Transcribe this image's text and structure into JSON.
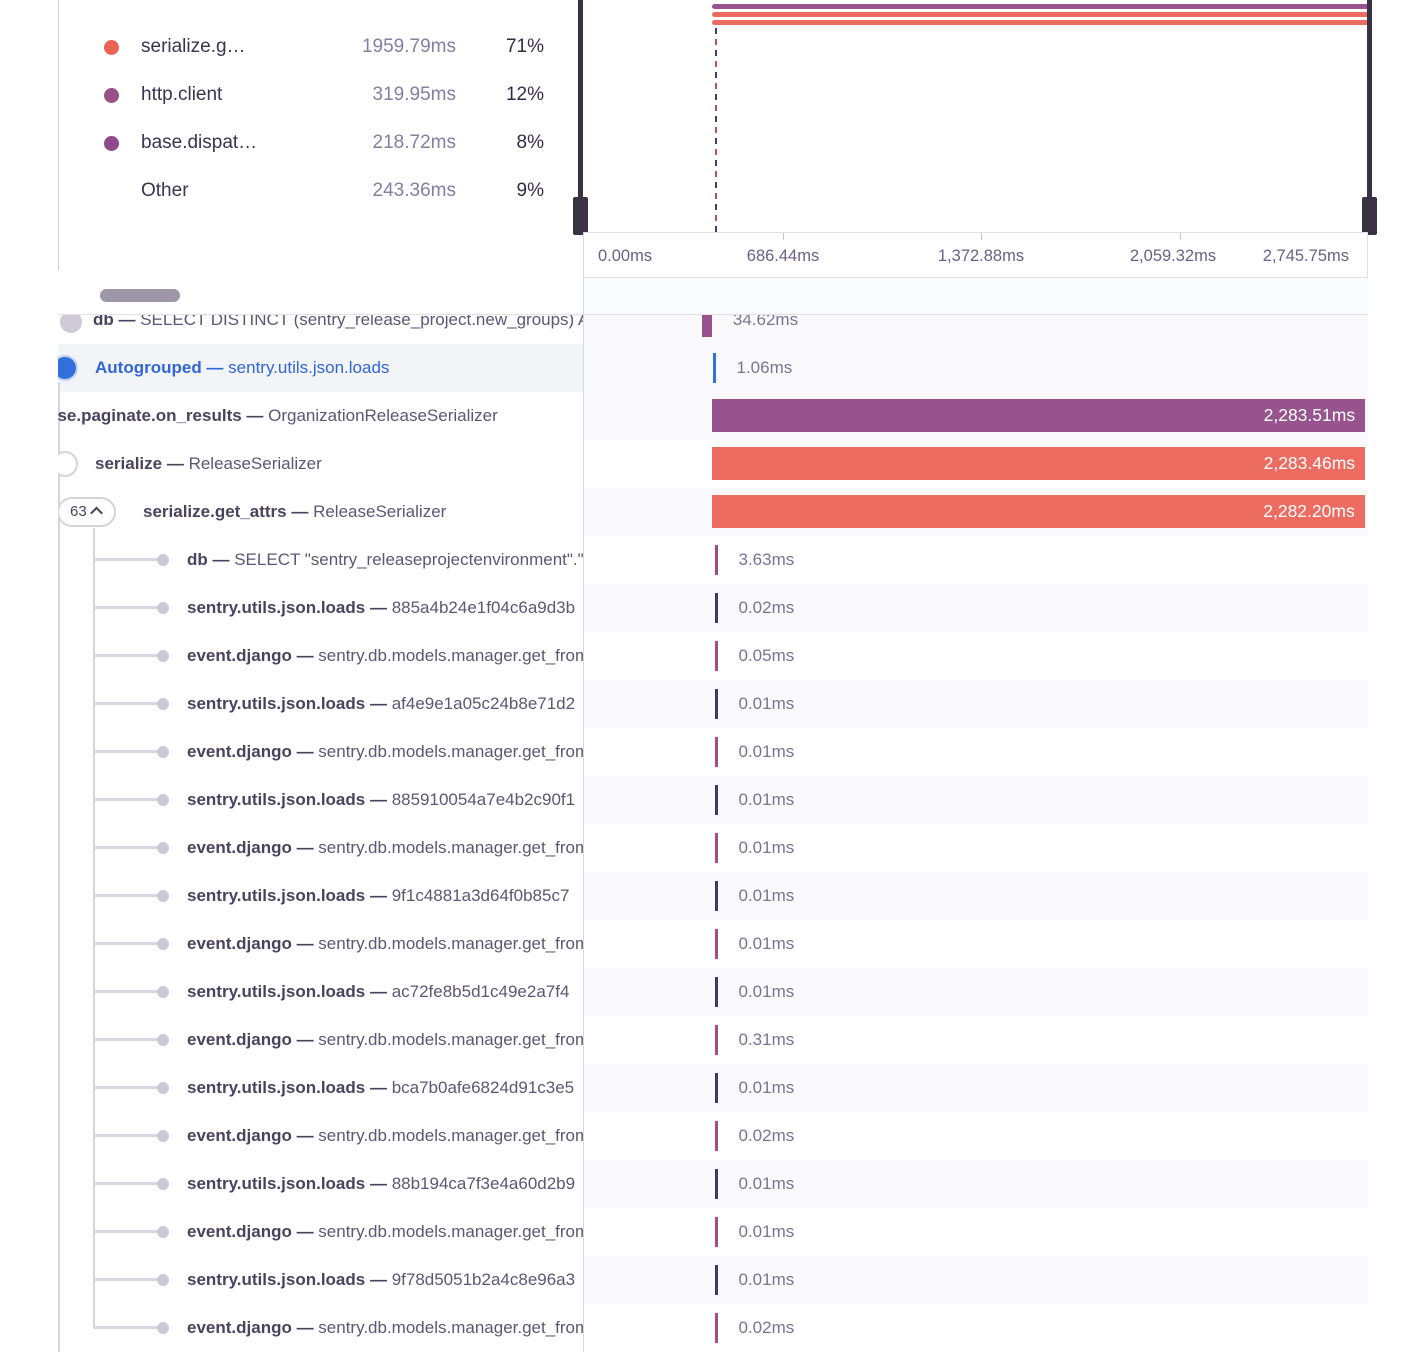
{
  "colors": {
    "purple": "#96538e",
    "red": "#ed6c62",
    "blue": "#3273dc",
    "db_pink": "#9d4d84",
    "json_navy": "#3b3d66",
    "django_magenta": "#a74b82",
    "legend_red_dot": "#ed6355",
    "legend_purple_dot1": "#9c5089",
    "legend_purple_dot2": "#8e4a8c"
  },
  "legend": {
    "items": [
      {
        "name": "serialize.g…",
        "duration": "1959.79ms",
        "pct": "71%",
        "dot": "legend_red_dot"
      },
      {
        "name": "http.client",
        "duration": "319.95ms",
        "pct": "12%",
        "dot": "legend_purple_dot1"
      },
      {
        "name": "base.dispat…",
        "duration": "218.72ms",
        "pct": "8%",
        "dot": "legend_purple_dot2"
      },
      {
        "name": "Other",
        "duration": "243.36ms",
        "pct": "9%",
        "dot": null
      }
    ]
  },
  "minimap": {
    "stripes": [
      "purple",
      "red",
      "red"
    ]
  },
  "axis": {
    "labels": [
      "0.00ms",
      "686.44ms",
      "1,372.88ms",
      "2,059.32ms",
      "2,745.75ms"
    ]
  },
  "tree": {
    "expand_badge": "63",
    "rows": [
      {
        "op": "db",
        "desc": "SELECT DISTINCT (sentry_release_project.new_groups) AS",
        "duration": "34.62ms",
        "kind": "db-big",
        "left": "stub"
      },
      {
        "op": "Autogrouped",
        "desc": "sentry.utils.json.loads",
        "duration": "1.06ms",
        "kind": "autogroup",
        "left": "autogroup"
      },
      {
        "op": "ase.paginate.on_results",
        "desc": "OrganizationReleaseSerializer",
        "duration": "2,283.51ms",
        "kind": "paginate",
        "left": "shifted"
      },
      {
        "op": "serialize",
        "desc": "ReleaseSerializer",
        "duration": "2,283.46ms",
        "kind": "serialize",
        "left": "halfbadge"
      },
      {
        "op": "serialize.get_attrs",
        "desc": "ReleaseSerializer",
        "duration": "2,282.20ms",
        "kind": "get_attrs",
        "left": "badge"
      },
      {
        "op": "db",
        "desc": "SELECT \"sentry_releaseprojectenvironment\".\"id\", \"sen",
        "duration": "3.63ms",
        "kind": "db",
        "left": "child"
      },
      {
        "op": "sentry.utils.json.loads",
        "desc": "885a4b24e1f04c6a9d3b",
        "duration": "0.02ms",
        "kind": "json",
        "left": "child"
      },
      {
        "op": "event.django",
        "desc": "sentry.db.models.manager.get_from_cache",
        "duration": "0.05ms",
        "kind": "django",
        "left": "child"
      },
      {
        "op": "sentry.utils.json.loads",
        "desc": "af4e9e1a05c24b8e71d2",
        "duration": "0.01ms",
        "kind": "json",
        "left": "child"
      },
      {
        "op": "event.django",
        "desc": "sentry.db.models.manager.get_from_cache",
        "duration": "0.01ms",
        "kind": "django",
        "left": "child"
      },
      {
        "op": "sentry.utils.json.loads",
        "desc": "885910054a7e4b2c90f1",
        "duration": "0.01ms",
        "kind": "json",
        "left": "child"
      },
      {
        "op": "event.django",
        "desc": "sentry.db.models.manager.get_from_cache",
        "duration": "0.01ms",
        "kind": "django",
        "left": "child"
      },
      {
        "op": "sentry.utils.json.loads",
        "desc": "9f1c4881a3d64f0b85c7",
        "duration": "0.01ms",
        "kind": "json",
        "left": "child"
      },
      {
        "op": "event.django",
        "desc": "sentry.db.models.manager.get_from_cache",
        "duration": "0.01ms",
        "kind": "django",
        "left": "child"
      },
      {
        "op": "sentry.utils.json.loads",
        "desc": "ac72fe8b5d1c49e2a7f4",
        "duration": "0.01ms",
        "kind": "json",
        "left": "child"
      },
      {
        "op": "event.django",
        "desc": "sentry.db.models.manager.get_from_cache",
        "duration": "0.31ms",
        "kind": "django",
        "left": "child"
      },
      {
        "op": "sentry.utils.json.loads",
        "desc": "bca7b0afe6824d91c3e5",
        "duration": "0.01ms",
        "kind": "json",
        "left": "child"
      },
      {
        "op": "event.django",
        "desc": "sentry.db.models.manager.get_from_cache",
        "duration": "0.02ms",
        "kind": "django",
        "left": "child"
      },
      {
        "op": "sentry.utils.json.loads",
        "desc": "88b194ca7f3e4a60d2b9",
        "duration": "0.01ms",
        "kind": "json",
        "left": "child"
      },
      {
        "op": "event.django",
        "desc": "sentry.db.models.manager.get_from_cache",
        "duration": "0.01ms",
        "kind": "django",
        "left": "child"
      },
      {
        "op": "sentry.utils.json.loads",
        "desc": "9f78d5051b2a4c8e96a3",
        "duration": "0.01ms",
        "kind": "json",
        "left": "child"
      },
      {
        "op": "event.django",
        "desc": "sentry.db.models.manager.get_from_cache",
        "duration": "0.02ms",
        "kind": "django",
        "left": "child"
      }
    ]
  }
}
